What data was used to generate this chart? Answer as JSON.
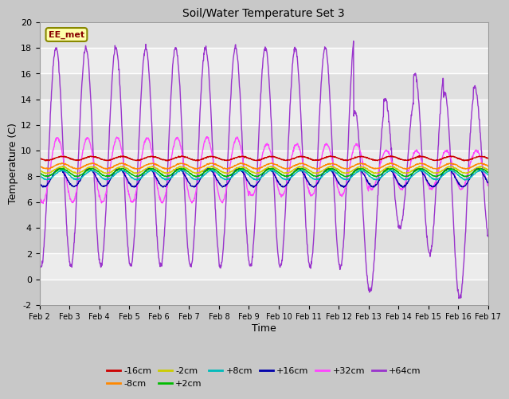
{
  "title": "Soil/Water Temperature Set 3",
  "xlabel": "Time",
  "ylabel": "Temperature (C)",
  "ylim": [
    -2,
    20
  ],
  "xlim": [
    0,
    15
  ],
  "watermark": "EE_met",
  "colors": {
    "-16cm": "#cc0000",
    "-8cm": "#ff8800",
    "-2cm": "#cccc00",
    "+2cm": "#00bb00",
    "+8cm": "#00bbbb",
    "+16cm": "#0000aa",
    "+32cm": "#ff44ff",
    "+64cm": "#9933cc"
  },
  "x_tick_labels": [
    "Feb 2",
    "Feb 3",
    "Feb 4",
    "Feb 5",
    "Feb 6",
    "Feb 7",
    "Feb 8",
    "Feb 9",
    "Feb 10",
    "Feb 11",
    "Feb 12",
    "Feb 13",
    "Feb 14",
    "Feb 15",
    "Feb 16",
    "Feb 17"
  ],
  "y_ticks": [
    -2,
    0,
    2,
    4,
    6,
    8,
    10,
    12,
    14,
    16,
    18,
    20
  ],
  "legend_order": [
    "-16cm",
    "-8cm",
    "-2cm",
    "+2cm",
    "+8cm",
    "+16cm",
    "+32cm",
    "+64cm"
  ]
}
